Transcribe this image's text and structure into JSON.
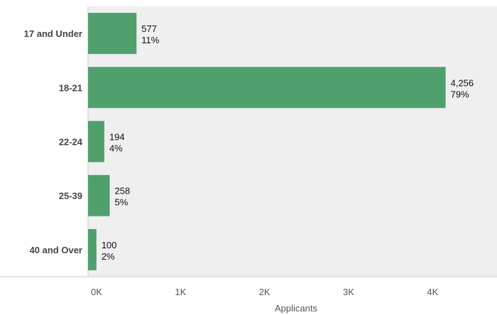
{
  "chart_data": {
    "type": "bar",
    "orientation": "horizontal",
    "categories": [
      "17 and Under",
      "18-21",
      "22-24",
      "25-39",
      "40 and Over"
    ],
    "values": [
      577,
      4256,
      194,
      258,
      100
    ],
    "value_labels": [
      "577",
      "4,256",
      "194",
      "258",
      "100"
    ],
    "percent_labels": [
      "11%",
      "79%",
      "4%",
      "5%",
      "2%"
    ],
    "xlabel": "Applicants",
    "xlim": [
      0,
      4800
    ],
    "xticks": [
      0,
      1000,
      2000,
      3000,
      4000
    ],
    "xtick_labels": [
      "0K",
      "1K",
      "2K",
      "3K",
      "4K"
    ],
    "grid": false,
    "colors": {
      "bar": "#4fa06d",
      "plot_background": "#efefef",
      "axis_line": "#cccccc"
    }
  }
}
